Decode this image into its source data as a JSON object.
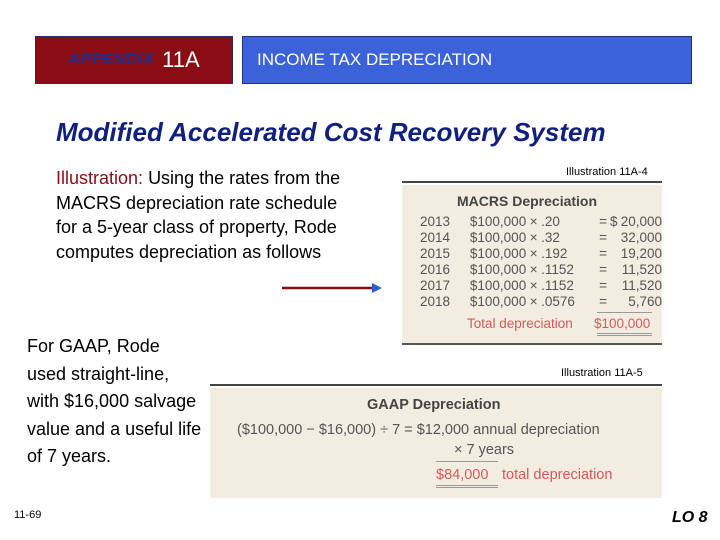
{
  "header": {
    "appendix_label": "APPENDIX",
    "appendix_number": "11A",
    "topic": "INCOME TAX DEPRECIATION"
  },
  "title": "Modified Accelerated Cost Recovery System",
  "illustration": {
    "lead": "Illustration:",
    "body": "Using the rates from the MACRS depreciation rate schedule for a 5-year class of property, Rode computes depreciation as follows"
  },
  "macrs": {
    "caption": "Illustration 11A-4",
    "heading": "MACRS Depreciation",
    "rows": [
      {
        "year": "2013",
        "amount": "$100,000",
        "op": "×",
        "rate": ".20",
        "eq": "=",
        "dollar": "$",
        "value": "20,000"
      },
      {
        "year": "2014",
        "amount": "$100,000",
        "op": "×",
        "rate": ".32",
        "eq": "=",
        "dollar": "",
        "value": "32,000"
      },
      {
        "year": "2015",
        "amount": "$100,000",
        "op": "×",
        "rate": ".192",
        "eq": "=",
        "dollar": "",
        "value": "19,200"
      },
      {
        "year": "2016",
        "amount": "$100,000",
        "op": "×",
        "rate": ".1152",
        "eq": "=",
        "dollar": "",
        "value": "11,520"
      },
      {
        "year": "2017",
        "amount": "$100,000",
        "op": "×",
        "rate": ".1152",
        "eq": "=",
        "dollar": "",
        "value": "11,520"
      },
      {
        "year": "2018",
        "amount": "$100,000",
        "op": "×",
        "rate": ".0576",
        "eq": "=",
        "dollar": "",
        "value": "5,760"
      }
    ],
    "total_label": "Total depreciation",
    "total_value": "$100,000"
  },
  "gaap_text": "For GAAP, Rode used straight-line, with $16,000 salvage value and a useful life of 7 years.",
  "gaap": {
    "caption": "Illustration 11A-5",
    "heading": "GAAP Depreciation",
    "line1_formula": "($100,000 − $16,000) ÷ 7 =",
    "line1_value": "$12,000",
    "line1_label": "annual depreciation",
    "line2_formula": "× 7",
    "line2_label": "years",
    "line3_value": "$84,000",
    "line3_label": "total depreciation"
  },
  "footer": {
    "page": "11-69",
    "lo": "LO 8"
  },
  "colors": {
    "maroon": "#8b0d14",
    "blue": "#3b62d8",
    "title_blue": "#12207d",
    "table_bg": "#f2ece1",
    "accent_red": "#d45a5a"
  }
}
